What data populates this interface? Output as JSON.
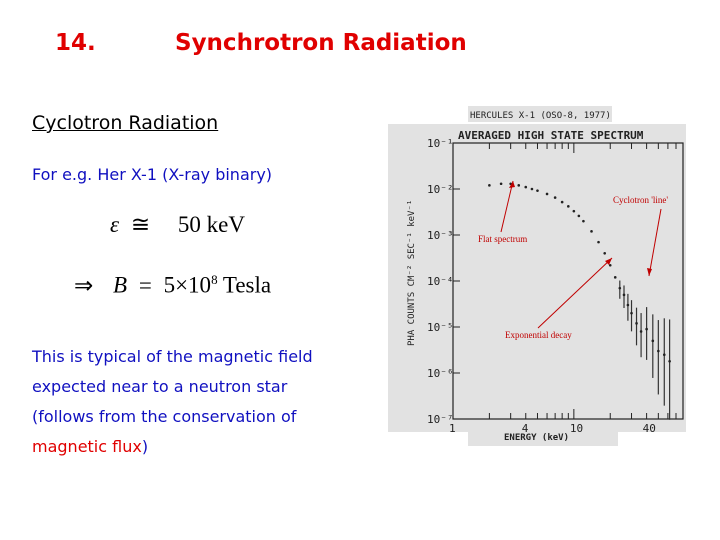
{
  "slide": {
    "number": "14.",
    "title": "Synchrotron Radiation",
    "subtitle": "Cyclotron Radiation",
    "example": "For e.g. Her X-1  (X-ray binary)",
    "eq1": {
      "epsilon": "ε",
      "approx": "≅",
      "value": "50 keV"
    },
    "eq2": {
      "implies": "⇒",
      "lhs": "B",
      "eq": "=",
      "mantissa": "5×10",
      "exp": "8",
      "unit": "Tesla"
    },
    "body_line1": "This is typical of the magnetic field",
    "body_line2": "expected near to a neutron star",
    "body_line3": "(follows from the conservation of",
    "body_line4_red": "magnetic flux",
    "body_line4_tail": ")"
  },
  "chart_data": {
    "type": "scatter",
    "header": "HERCULES X-1 (OSO-8, 1977)",
    "title": "AVERAGED HIGH STATE SPECTRUM",
    "xlabel": "ENERGY (keV)",
    "ylabel": "PHA COUNTS CM⁻² SEC⁻¹ keV⁻¹",
    "x_scale": "log",
    "y_scale": "log",
    "xlim": [
      1,
      80
    ],
    "ylim": [
      1e-07,
      0.1
    ],
    "x_ticks": [
      "1",
      "4",
      "10",
      "40"
    ],
    "y_ticks": [
      "10⁻¹",
      "10⁻²",
      "10⁻³",
      "10⁻⁴",
      "10⁻⁵",
      "10⁻⁶",
      "10⁻⁷"
    ],
    "points": [
      {
        "x": 2.0,
        "y": 0.012
      },
      {
        "x": 2.5,
        "y": 0.013
      },
      {
        "x": 3.0,
        "y": 0.013
      },
      {
        "x": 3.5,
        "y": 0.012
      },
      {
        "x": 4.0,
        "y": 0.011
      },
      {
        "x": 4.5,
        "y": 0.01
      },
      {
        "x": 5.0,
        "y": 0.0092
      },
      {
        "x": 6.0,
        "y": 0.0078
      },
      {
        "x": 7.0,
        "y": 0.0065
      },
      {
        "x": 8.0,
        "y": 0.0052
      },
      {
        "x": 9.0,
        "y": 0.0042
      },
      {
        "x": 10.0,
        "y": 0.0033
      },
      {
        "x": 11.0,
        "y": 0.0026
      },
      {
        "x": 12.0,
        "y": 0.002
      },
      {
        "x": 14.0,
        "y": 0.0012
      },
      {
        "x": 16.0,
        "y": 0.0007
      },
      {
        "x": 18.0,
        "y": 0.0004
      },
      {
        "x": 20.0,
        "y": 0.00022
      },
      {
        "x": 22.0,
        "y": 0.00012
      },
      {
        "x": 24.0,
        "y": 7e-05
      },
      {
        "x": 26.0,
        "y": 5e-05
      },
      {
        "x": 28.0,
        "y": 3e-05
      },
      {
        "x": 30.0,
        "y": 2e-05
      },
      {
        "x": 33.0,
        "y": 1.2e-05
      },
      {
        "x": 36.0,
        "y": 8e-06
      },
      {
        "x": 40.0,
        "y": 9e-06
      },
      {
        "x": 45.0,
        "y": 5e-06
      },
      {
        "x": 50.0,
        "y": 3e-06
      },
      {
        "x": 56.0,
        "y": 2.5e-06
      },
      {
        "x": 62.0,
        "y": 1.8e-06
      }
    ],
    "annotations": [
      {
        "text": "Flat spectrum"
      },
      {
        "text": "Cyclotron 'line'"
      },
      {
        "text": "Exponential decay"
      }
    ]
  }
}
